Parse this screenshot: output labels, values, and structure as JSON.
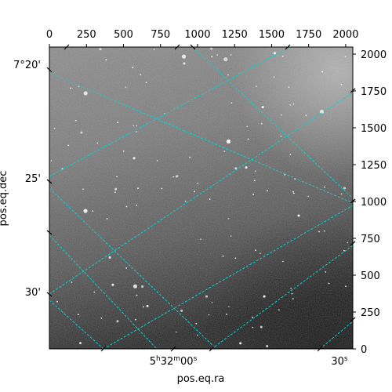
{
  "top_axis": {
    "tick_labels": [
      "0",
      "250",
      "500",
      "750",
      "1000",
      "1250",
      "1500",
      "1750",
      "2000"
    ],
    "range": [
      0,
      2048
    ]
  },
  "right_axis": {
    "tick_labels": [
      "0",
      "250",
      "500",
      "750",
      "1000",
      "1250",
      "1500",
      "1750",
      "2000"
    ],
    "range": [
      0,
      2048
    ]
  },
  "left_axis": {
    "label": "pos.eq.dec",
    "tick_labels": [
      {
        "deg": "7°20'",
        "main": "7°20'"
      },
      {
        "deg": "",
        "main": "25'"
      },
      {
        "deg": "",
        "main": "30'"
      }
    ]
  },
  "bottom_axis": {
    "label": "pos.eq.ra",
    "tick_labels": [
      {
        "h": "5",
        "hs": "h",
        "m": "32",
        "ms": "m",
        "s": "00",
        "ss": "s"
      },
      {
        "h": "",
        "hs": "",
        "m": "",
        "ms": "",
        "s": "30",
        "ss": "s"
      }
    ]
  },
  "colors": {
    "grid": "#00d5d5",
    "sky_light": "#9a9a9a",
    "sky_dark": "#1c1c1c"
  }
}
